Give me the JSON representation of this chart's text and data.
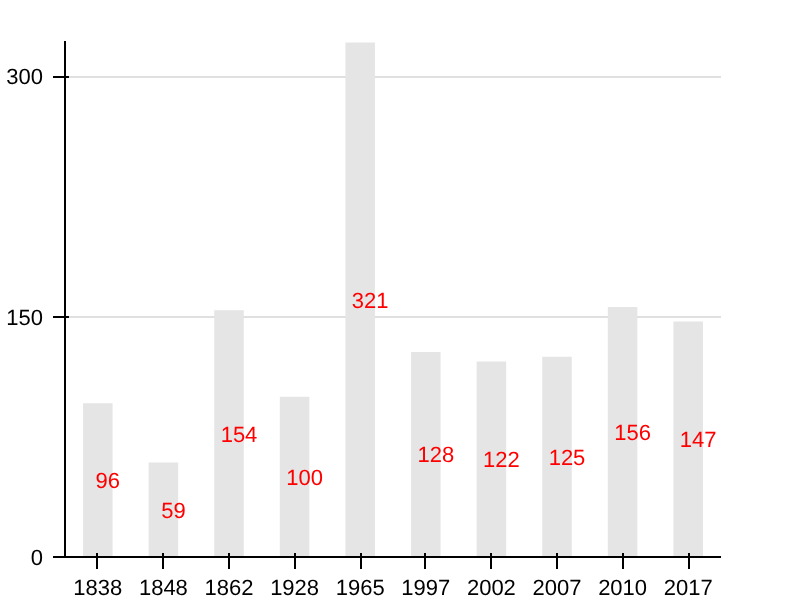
{
  "chart_data": {
    "type": "bar",
    "categories": [
      "1838",
      "1848",
      "1862",
      "1928",
      "1965",
      "1997",
      "2002",
      "2007",
      "2010",
      "2017"
    ],
    "values": [
      96,
      59,
      154,
      100,
      321,
      128,
      122,
      125,
      156,
      147
    ],
    "color": "#e5e5e5",
    "ylim": [
      0,
      322
    ],
    "yticks": [
      0,
      150,
      300
    ],
    "grid": "y",
    "data_labels": true
  }
}
